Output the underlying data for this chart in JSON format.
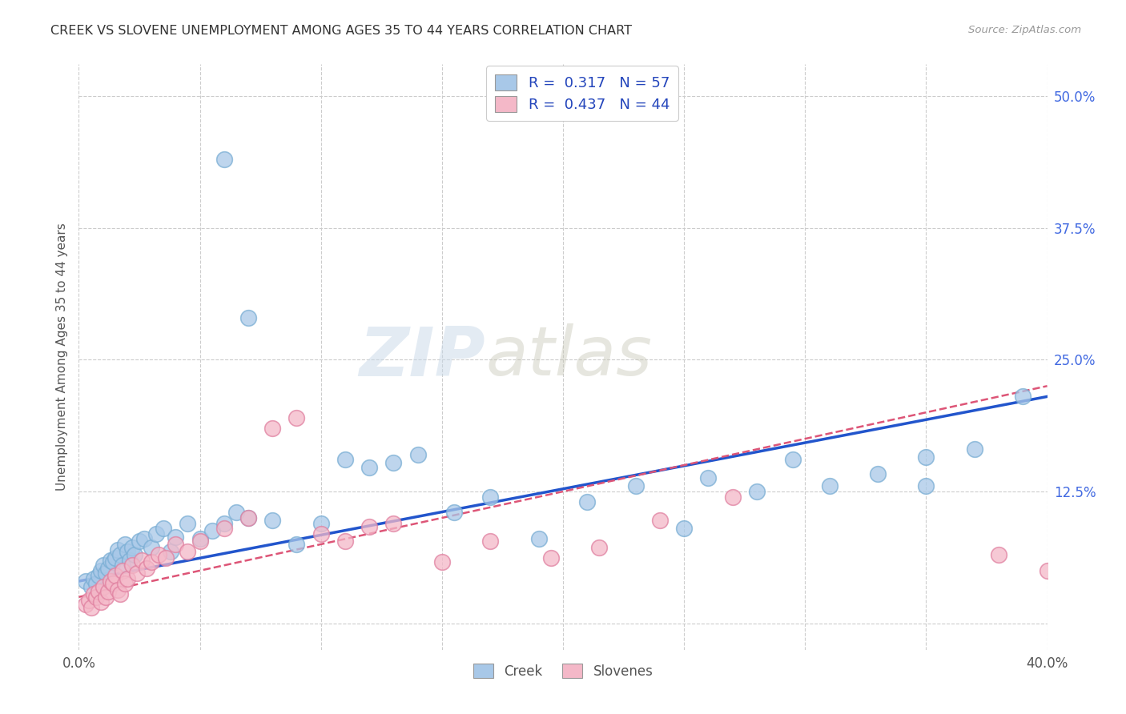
{
  "title": "CREEK VS SLOVENE UNEMPLOYMENT AMONG AGES 35 TO 44 YEARS CORRELATION CHART",
  "source": "Source: ZipAtlas.com",
  "ylabel": "Unemployment Among Ages 35 to 44 years",
  "xlim": [
    0.0,
    0.4
  ],
  "ylim": [
    -0.025,
    0.53
  ],
  "ytick_right_labels": [
    "50.0%",
    "37.5%",
    "25.0%",
    "12.5%",
    ""
  ],
  "ytick_right_values": [
    0.5,
    0.375,
    0.25,
    0.125,
    0.0
  ],
  "creek_color": "#a8c8e8",
  "creek_edge_color": "#7aaed4",
  "slovene_color": "#f4b8c8",
  "slovene_edge_color": "#e080a0",
  "creek_line_color": "#2255cc",
  "slovene_line_color": "#dd5577",
  "legend_text_1": "R =  0.317   N = 57",
  "legend_text_2": "R =  0.437   N = 44",
  "watermark_zip": "ZIP",
  "watermark_atlas": "atlas",
  "creek_scatter_x": [
    0.003,
    0.005,
    0.006,
    0.007,
    0.008,
    0.009,
    0.01,
    0.011,
    0.012,
    0.013,
    0.014,
    0.015,
    0.016,
    0.017,
    0.018,
    0.019,
    0.02,
    0.021,
    0.022,
    0.023,
    0.025,
    0.027,
    0.03,
    0.032,
    0.035,
    0.038,
    0.04,
    0.045,
    0.05,
    0.055,
    0.06,
    0.065,
    0.07,
    0.08,
    0.09,
    0.1,
    0.11,
    0.12,
    0.13,
    0.14,
    0.155,
    0.17,
    0.19,
    0.21,
    0.23,
    0.26,
    0.28,
    0.295,
    0.31,
    0.33,
    0.35,
    0.37,
    0.06,
    0.07,
    0.25,
    0.35,
    0.39
  ],
  "creek_scatter_y": [
    0.04,
    0.035,
    0.042,
    0.038,
    0.045,
    0.05,
    0.055,
    0.048,
    0.052,
    0.06,
    0.058,
    0.062,
    0.07,
    0.065,
    0.055,
    0.075,
    0.068,
    0.06,
    0.072,
    0.065,
    0.078,
    0.08,
    0.072,
    0.085,
    0.09,
    0.068,
    0.082,
    0.095,
    0.08,
    0.088,
    0.095,
    0.105,
    0.1,
    0.098,
    0.075,
    0.095,
    0.155,
    0.148,
    0.152,
    0.16,
    0.105,
    0.12,
    0.08,
    0.115,
    0.13,
    0.138,
    0.125,
    0.155,
    0.13,
    0.142,
    0.158,
    0.165,
    0.44,
    0.29,
    0.09,
    0.13,
    0.215
  ],
  "slovene_scatter_x": [
    0.003,
    0.004,
    0.005,
    0.006,
    0.007,
    0.008,
    0.009,
    0.01,
    0.011,
    0.012,
    0.013,
    0.014,
    0.015,
    0.016,
    0.017,
    0.018,
    0.019,
    0.02,
    0.022,
    0.024,
    0.026,
    0.028,
    0.03,
    0.033,
    0.036,
    0.04,
    0.045,
    0.05,
    0.06,
    0.07,
    0.08,
    0.09,
    0.1,
    0.11,
    0.12,
    0.13,
    0.15,
    0.17,
    0.195,
    0.215,
    0.24,
    0.27,
    0.38,
    0.4
  ],
  "slovene_scatter_y": [
    0.018,
    0.022,
    0.015,
    0.028,
    0.025,
    0.03,
    0.02,
    0.035,
    0.025,
    0.03,
    0.04,
    0.038,
    0.045,
    0.032,
    0.028,
    0.05,
    0.038,
    0.042,
    0.055,
    0.048,
    0.06,
    0.052,
    0.058,
    0.065,
    0.062,
    0.075,
    0.068,
    0.078,
    0.09,
    0.1,
    0.185,
    0.195,
    0.085,
    0.078,
    0.092,
    0.095,
    0.058,
    0.078,
    0.062,
    0.072,
    0.098,
    0.12,
    0.065,
    0.05
  ],
  "creek_trend_x": [
    0.0,
    0.4
  ],
  "creek_trend_y": [
    0.04,
    0.215
  ],
  "slovene_trend_x": [
    0.0,
    0.4
  ],
  "slovene_trend_y": [
    0.025,
    0.225
  ]
}
